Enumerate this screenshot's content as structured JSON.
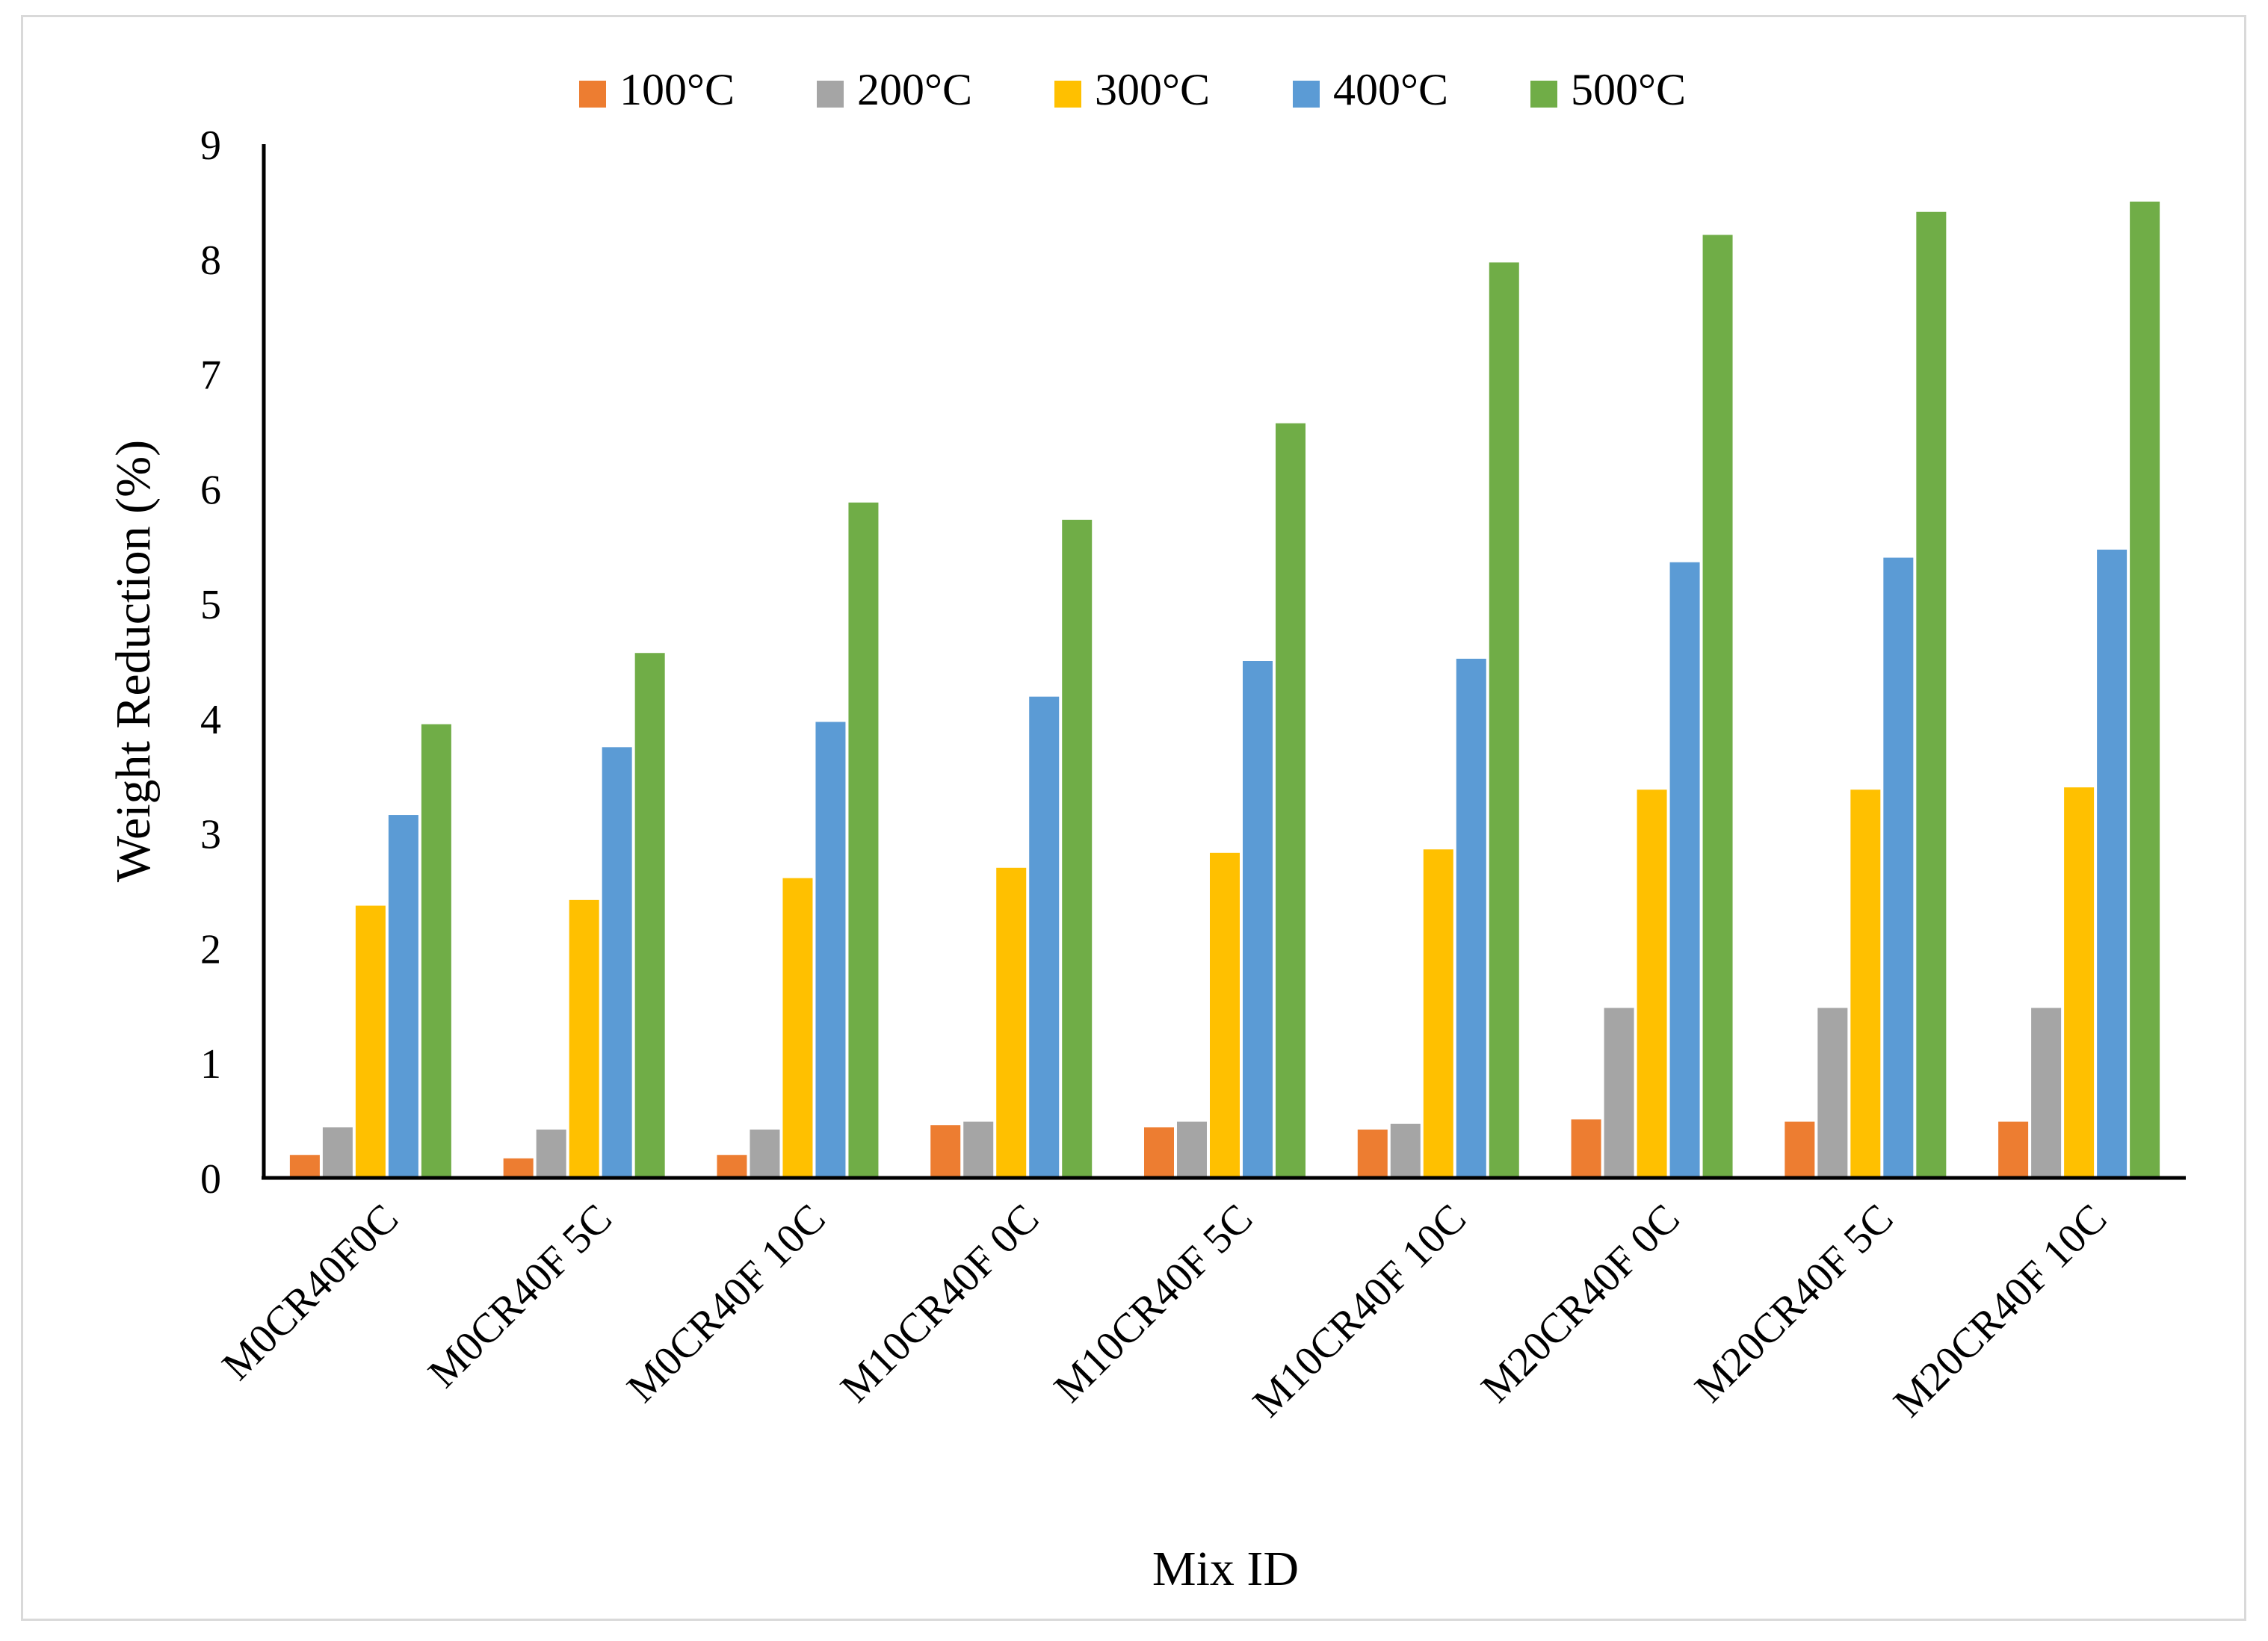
{
  "chart_data": {
    "type": "bar",
    "title": "",
    "xlabel": "Mix ID",
    "ylabel": "Weight Reduction (%)",
    "ylim": [
      0,
      9
    ],
    "yticks": [
      "0",
      "1",
      "2",
      "3",
      "4",
      "5",
      "6",
      "7",
      "8",
      "9"
    ],
    "grid": false,
    "legend_position": "top",
    "categories": [
      "M0CR40F0C",
      "M0CR40F 5C",
      "M0CR40F 10C",
      "M10CR40F 0C",
      "M10CR40F 5C",
      "M10CR40F 10C",
      "M20CR40F 0C",
      "M20CR40F 5C",
      "M20CR40F 10C"
    ],
    "series": [
      {
        "name": "100°C",
        "color": "#ED7D31",
        "values": [
          0.2,
          0.17,
          0.2,
          0.46,
          0.44,
          0.42,
          0.51,
          0.49,
          0.49
        ]
      },
      {
        "name": "200°C",
        "color": "#A5A5A5",
        "values": [
          0.44,
          0.42,
          0.42,
          0.49,
          0.49,
          0.47,
          1.48,
          1.48,
          1.48
        ]
      },
      {
        "name": "300°C",
        "color": "#FFC000",
        "values": [
          2.37,
          2.42,
          2.61,
          2.7,
          2.83,
          2.86,
          3.38,
          3.38,
          3.4
        ]
      },
      {
        "name": "400°C",
        "color": "#5B9BD5",
        "values": [
          3.16,
          3.75,
          3.97,
          4.19,
          4.5,
          4.52,
          5.36,
          5.4,
          5.47
        ]
      },
      {
        "name": "500°C",
        "color": "#70AD47",
        "values": [
          3.95,
          4.57,
          5.88,
          5.73,
          6.57,
          7.97,
          8.21,
          8.41,
          8.5
        ]
      }
    ]
  }
}
